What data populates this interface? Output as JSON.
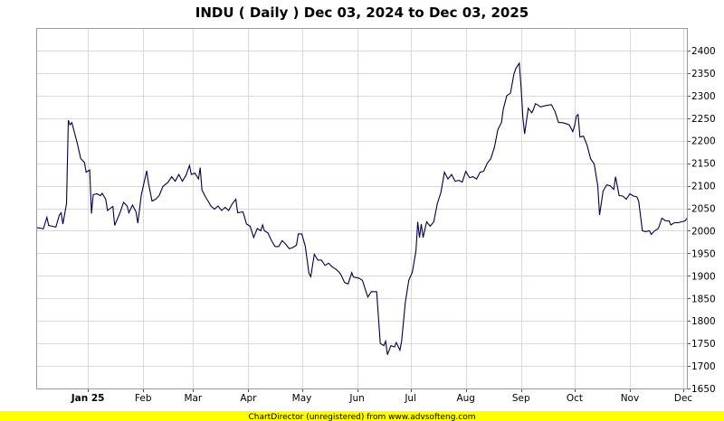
{
  "chart_data": {
    "type": "line",
    "title": "INDU ( Daily ) Dec 03, 2024 to Dec 03, 2025",
    "footer": "ChartDirector (unregistered) from www.advsofteng.com",
    "ylim": [
      1650,
      2450
    ],
    "yticks": [
      1650,
      1700,
      1750,
      1800,
      1850,
      1900,
      1950,
      2000,
      2050,
      2100,
      2150,
      2200,
      2250,
      2300,
      2350,
      2400
    ],
    "xlim": [
      "2024-12-03",
      "2025-12-03"
    ],
    "xticks": [
      {
        "date": "2025-01-01",
        "label": "Jan 25",
        "bold": true
      },
      {
        "date": "2025-02-01",
        "label": "Feb"
      },
      {
        "date": "2025-03-01",
        "label": "Mar"
      },
      {
        "date": "2025-04-01",
        "label": "Apr"
      },
      {
        "date": "2025-05-01",
        "label": "May"
      },
      {
        "date": "2025-06-01",
        "label": "Jun"
      },
      {
        "date": "2025-07-01",
        "label": "Jul"
      },
      {
        "date": "2025-08-01",
        "label": "Aug"
      },
      {
        "date": "2025-09-01",
        "label": "Sep"
      },
      {
        "date": "2025-10-01",
        "label": "Oct"
      },
      {
        "date": "2025-11-01",
        "label": "Nov"
      },
      {
        "date": "2025-12-01",
        "label": "Dec"
      }
    ],
    "grid": true,
    "line_color": "#000040",
    "series": [
      {
        "points": [
          [
            "2024-12-03",
            2007
          ],
          [
            "2024-12-05",
            2006
          ],
          [
            "2024-12-07",
            2004
          ],
          [
            "2024-12-09",
            2030
          ],
          [
            "2024-12-10",
            2012
          ],
          [
            "2024-12-12",
            2010
          ],
          [
            "2024-12-14",
            2008
          ],
          [
            "2024-12-16",
            2035
          ],
          [
            "2024-12-17",
            2040
          ],
          [
            "2024-12-18",
            2015
          ],
          [
            "2024-12-20",
            2060
          ],
          [
            "2024-12-21",
            2245
          ],
          [
            "2024-12-22",
            2235
          ],
          [
            "2024-12-23",
            2240
          ],
          [
            "2024-12-26",
            2195
          ],
          [
            "2024-12-28",
            2160
          ],
          [
            "2024-12-30",
            2152
          ],
          [
            "2024-12-31",
            2130
          ],
          [
            "2025-01-02",
            2135
          ],
          [
            "2025-01-03",
            2038
          ],
          [
            "2025-01-04",
            2080
          ],
          [
            "2025-01-06",
            2082
          ],
          [
            "2025-01-08",
            2078
          ],
          [
            "2025-01-09",
            2083
          ],
          [
            "2025-01-11",
            2070
          ],
          [
            "2025-01-12",
            2045
          ],
          [
            "2025-01-15",
            2054
          ],
          [
            "2025-01-16",
            2012
          ],
          [
            "2025-01-19",
            2040
          ],
          [
            "2025-01-21",
            2063
          ],
          [
            "2025-01-23",
            2055
          ],
          [
            "2025-01-24",
            2040
          ],
          [
            "2025-01-26",
            2057
          ],
          [
            "2025-01-28",
            2042
          ],
          [
            "2025-01-29",
            2017
          ],
          [
            "2025-01-31",
            2080
          ],
          [
            "2025-02-03",
            2133
          ],
          [
            "2025-02-04",
            2105
          ],
          [
            "2025-02-06",
            2066
          ],
          [
            "2025-02-08",
            2070
          ],
          [
            "2025-02-10",
            2078
          ],
          [
            "2025-02-12",
            2098
          ],
          [
            "2025-02-15",
            2108
          ],
          [
            "2025-02-17",
            2120
          ],
          [
            "2025-02-19",
            2110
          ],
          [
            "2025-02-21",
            2125
          ],
          [
            "2025-02-23",
            2110
          ],
          [
            "2025-02-25",
            2123
          ],
          [
            "2025-02-27",
            2145
          ],
          [
            "2025-02-28",
            2125
          ],
          [
            "2025-03-02",
            2128
          ],
          [
            "2025-03-04",
            2115
          ],
          [
            "2025-03-05",
            2140
          ],
          [
            "2025-03-06",
            2090
          ],
          [
            "2025-03-08",
            2075
          ],
          [
            "2025-03-10",
            2062
          ],
          [
            "2025-03-11",
            2055
          ],
          [
            "2025-03-13",
            2048
          ],
          [
            "2025-03-15",
            2055
          ],
          [
            "2025-03-17",
            2045
          ],
          [
            "2025-03-19",
            2052
          ],
          [
            "2025-03-21",
            2045
          ],
          [
            "2025-03-23",
            2060
          ],
          [
            "2025-03-25",
            2070
          ],
          [
            "2025-03-26",
            2040
          ],
          [
            "2025-03-29",
            2042
          ],
          [
            "2025-03-31",
            2015
          ],
          [
            "2025-04-02",
            2010
          ],
          [
            "2025-04-04",
            1985
          ],
          [
            "2025-04-06",
            2005
          ],
          [
            "2025-04-08",
            2000
          ],
          [
            "2025-04-09",
            2013
          ],
          [
            "2025-04-10",
            2000
          ],
          [
            "2025-04-12",
            1995
          ],
          [
            "2025-04-14",
            1978
          ],
          [
            "2025-04-16",
            1965
          ],
          [
            "2025-04-18",
            1965
          ],
          [
            "2025-04-20",
            1978
          ],
          [
            "2025-04-22",
            1970
          ],
          [
            "2025-04-24",
            1960
          ],
          [
            "2025-04-26",
            1963
          ],
          [
            "2025-04-28",
            1968
          ],
          [
            "2025-04-29",
            1993
          ],
          [
            "2025-05-01",
            1993
          ],
          [
            "2025-05-03",
            1965
          ],
          [
            "2025-05-05",
            1905
          ],
          [
            "2025-05-06",
            1898
          ],
          [
            "2025-05-08",
            1948
          ],
          [
            "2025-05-10",
            1935
          ],
          [
            "2025-05-12",
            1935
          ],
          [
            "2025-05-14",
            1923
          ],
          [
            "2025-05-16",
            1928
          ],
          [
            "2025-05-18",
            1920
          ],
          [
            "2025-05-20",
            1915
          ],
          [
            "2025-05-22",
            1908
          ],
          [
            "2025-05-23",
            1902
          ],
          [
            "2025-05-25",
            1885
          ],
          [
            "2025-05-27",
            1882
          ],
          [
            "2025-05-29",
            1907
          ],
          [
            "2025-05-30",
            1897
          ],
          [
            "2025-06-02",
            1895
          ],
          [
            "2025-06-04",
            1890
          ],
          [
            "2025-06-07",
            1853
          ],
          [
            "2025-06-09",
            1865
          ],
          [
            "2025-06-12",
            1865
          ],
          [
            "2025-06-14",
            1750
          ],
          [
            "2025-06-16",
            1745
          ],
          [
            "2025-06-17",
            1755
          ],
          [
            "2025-06-18",
            1725
          ],
          [
            "2025-06-20",
            1745
          ],
          [
            "2025-06-22",
            1742
          ],
          [
            "2025-06-23",
            1752
          ],
          [
            "2025-06-25",
            1735
          ],
          [
            "2025-06-26",
            1755
          ],
          [
            "2025-06-28",
            1840
          ],
          [
            "2025-06-30",
            1890
          ],
          [
            "2025-07-02",
            1908
          ],
          [
            "2025-07-04",
            1955
          ],
          [
            "2025-07-05",
            2020
          ],
          [
            "2025-07-06",
            1985
          ],
          [
            "2025-07-07",
            2015
          ],
          [
            "2025-07-08",
            1985
          ],
          [
            "2025-07-10",
            2020
          ],
          [
            "2025-07-12",
            2010
          ],
          [
            "2025-07-14",
            2020
          ],
          [
            "2025-07-16",
            2060
          ],
          [
            "2025-07-18",
            2085
          ],
          [
            "2025-07-20",
            2130
          ],
          [
            "2025-07-22",
            2115
          ],
          [
            "2025-07-24",
            2125
          ],
          [
            "2025-07-26",
            2110
          ],
          [
            "2025-07-28",
            2112
          ],
          [
            "2025-07-30",
            2108
          ],
          [
            "2025-08-01",
            2132
          ],
          [
            "2025-08-03",
            2118
          ],
          [
            "2025-08-05",
            2120
          ],
          [
            "2025-08-07",
            2115
          ],
          [
            "2025-08-09",
            2130
          ],
          [
            "2025-08-11",
            2132
          ],
          [
            "2025-08-13",
            2150
          ],
          [
            "2025-08-15",
            2160
          ],
          [
            "2025-08-17",
            2185
          ],
          [
            "2025-08-19",
            2225
          ],
          [
            "2025-08-21",
            2240
          ],
          [
            "2025-08-22",
            2270
          ],
          [
            "2025-08-24",
            2300
          ],
          [
            "2025-08-26",
            2305
          ],
          [
            "2025-08-28",
            2348
          ],
          [
            "2025-08-29",
            2360
          ],
          [
            "2025-08-31",
            2372
          ],
          [
            "2025-09-01",
            2318
          ],
          [
            "2025-09-02",
            2250
          ],
          [
            "2025-09-03",
            2215
          ],
          [
            "2025-09-05",
            2272
          ],
          [
            "2025-09-07",
            2262
          ],
          [
            "2025-09-08",
            2270
          ],
          [
            "2025-09-09",
            2282
          ],
          [
            "2025-09-10",
            2280
          ],
          [
            "2025-09-12",
            2275
          ],
          [
            "2025-09-15",
            2278
          ],
          [
            "2025-09-18",
            2280
          ],
          [
            "2025-09-20",
            2265
          ],
          [
            "2025-09-22",
            2240
          ],
          [
            "2025-09-24",
            2240
          ],
          [
            "2025-09-26",
            2238
          ],
          [
            "2025-09-28",
            2235
          ],
          [
            "2025-09-30",
            2220
          ],
          [
            "2025-10-01",
            2233
          ],
          [
            "2025-10-02",
            2255
          ],
          [
            "2025-10-03",
            2258
          ],
          [
            "2025-10-04",
            2208
          ],
          [
            "2025-10-06",
            2210
          ],
          [
            "2025-10-08",
            2190
          ],
          [
            "2025-10-10",
            2160
          ],
          [
            "2025-10-12",
            2148
          ],
          [
            "2025-10-14",
            2100
          ],
          [
            "2025-10-15",
            2035
          ],
          [
            "2025-10-17",
            2088
          ],
          [
            "2025-10-19",
            2102
          ],
          [
            "2025-10-21",
            2100
          ],
          [
            "2025-10-23",
            2092
          ],
          [
            "2025-10-24",
            2120
          ],
          [
            "2025-10-26",
            2078
          ],
          [
            "2025-10-28",
            2077
          ],
          [
            "2025-10-30",
            2070
          ],
          [
            "2025-11-01",
            2082
          ],
          [
            "2025-11-03",
            2077
          ],
          [
            "2025-11-05",
            2075
          ],
          [
            "2025-11-06",
            2065
          ],
          [
            "2025-11-08",
            2000
          ],
          [
            "2025-11-10",
            1998
          ],
          [
            "2025-11-12",
            2000
          ],
          [
            "2025-11-13",
            1992
          ],
          [
            "2025-11-15",
            2000
          ],
          [
            "2025-11-17",
            2005
          ],
          [
            "2025-11-19",
            2028
          ],
          [
            "2025-11-21",
            2022
          ],
          [
            "2025-11-23",
            2022
          ],
          [
            "2025-11-24",
            2013
          ],
          [
            "2025-11-26",
            2018
          ],
          [
            "2025-11-28",
            2018
          ],
          [
            "2025-11-30",
            2020
          ],
          [
            "2025-12-02",
            2022
          ],
          [
            "2025-12-03",
            2028
          ]
        ]
      }
    ]
  }
}
